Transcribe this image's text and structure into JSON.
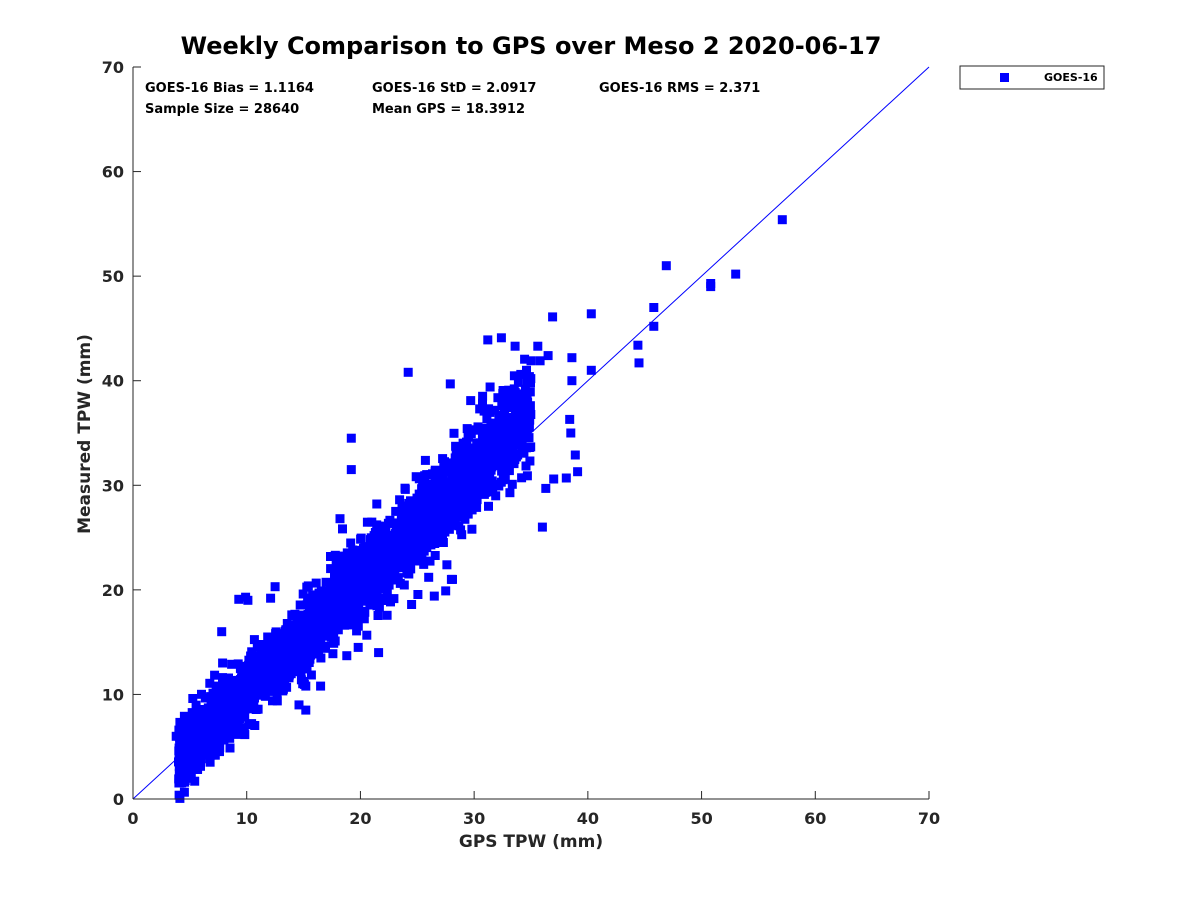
{
  "chart_data": {
    "type": "scatter",
    "title": "Weekly Comparison to GPS over Meso 2 2020-06-17",
    "xlabel": "GPS TPW (mm)",
    "ylabel": "Measured TPW (mm)",
    "xlim": [
      0,
      70
    ],
    "ylim": [
      0,
      70
    ],
    "xticks": [
      "0",
      "10",
      "20",
      "30",
      "40",
      "50",
      "60",
      "70"
    ],
    "yticks": [
      "0",
      "10",
      "20",
      "30",
      "40",
      "50",
      "60",
      "70"
    ],
    "grid": false,
    "legend_position": "outside-top-right",
    "stats": [
      "GOES-16 Bias = 1.1164",
      "GOES-16 StD = 2.0917",
      "GOES-16 RMS = 2.371",
      "Sample Size = 28640",
      "Mean GPS = 18.3912"
    ],
    "reference_line": {
      "type": "one-to-one",
      "x": [
        0,
        70
      ],
      "y": [
        0,
        70
      ],
      "color": "#0000ff"
    },
    "series": [
      {
        "name": "GOES-16",
        "color": "#0000ff",
        "marker": "square",
        "cloud": {
          "count": 2600,
          "x_range": [
            4,
            35
          ],
          "slope": 1.06,
          "intercept": -0.3,
          "spread": 2.2,
          "seed": 17
        },
        "outliers": [
          [
            3.8,
            6.0
          ],
          [
            4.3,
            4.6
          ],
          [
            4.8,
            4.4
          ],
          [
            5.5,
            4.9
          ],
          [
            6.5,
            4.6
          ],
          [
            7.5,
            5.8
          ],
          [
            7.8,
            16.0
          ],
          [
            8.5,
            5.8
          ],
          [
            9.3,
            19.1
          ],
          [
            9.9,
            19.3
          ],
          [
            10.1,
            19.0
          ],
          [
            12.1,
            19.2
          ],
          [
            12.5,
            20.3
          ],
          [
            15.2,
            8.5
          ],
          [
            14.6,
            9.0
          ],
          [
            15.2,
            10.8
          ],
          [
            16.5,
            10.8
          ],
          [
            18.8,
            13.7
          ],
          [
            19.8,
            14.5
          ],
          [
            21.6,
            14.0
          ],
          [
            18.2,
            26.8
          ],
          [
            19.2,
            31.5
          ],
          [
            19.2,
            34.5
          ],
          [
            24.2,
            40.8
          ],
          [
            27.9,
            39.7
          ],
          [
            29.7,
            38.1
          ],
          [
            31.4,
            39.4
          ],
          [
            31.2,
            43.9
          ],
          [
            32.4,
            44.1
          ],
          [
            33.6,
            43.3
          ],
          [
            34.1,
            40.6
          ],
          [
            34.6,
            41.0
          ],
          [
            35.0,
            41.9
          ],
          [
            35.6,
            43.3
          ],
          [
            35.8,
            41.9
          ],
          [
            36.5,
            42.4
          ],
          [
            36.9,
            46.1
          ],
          [
            38.6,
            42.2
          ],
          [
            38.6,
            40.0
          ],
          [
            40.3,
            41.0
          ],
          [
            40.3,
            46.4
          ],
          [
            38.4,
            36.3
          ],
          [
            38.5,
            35.0
          ],
          [
            38.9,
            32.9
          ],
          [
            39.1,
            31.3
          ],
          [
            38.1,
            30.7
          ],
          [
            37.0,
            30.6
          ],
          [
            36.3,
            29.7
          ],
          [
            36.0,
            26.0
          ],
          [
            29.8,
            25.8
          ],
          [
            27.6,
            22.4
          ],
          [
            28.1,
            21.0
          ],
          [
            27.5,
            19.9
          ],
          [
            26.0,
            21.2
          ],
          [
            24.5,
            18.6
          ],
          [
            26.5,
            19.4
          ],
          [
            28.0,
            21.0
          ],
          [
            44.4,
            43.4
          ],
          [
            44.5,
            41.7
          ],
          [
            45.8,
            47.0
          ],
          [
            45.8,
            45.2
          ],
          [
            46.9,
            51.0
          ],
          [
            50.8,
            49.0
          ],
          [
            50.8,
            49.3
          ],
          [
            53.0,
            50.2
          ],
          [
            57.1,
            55.4
          ]
        ]
      }
    ]
  }
}
